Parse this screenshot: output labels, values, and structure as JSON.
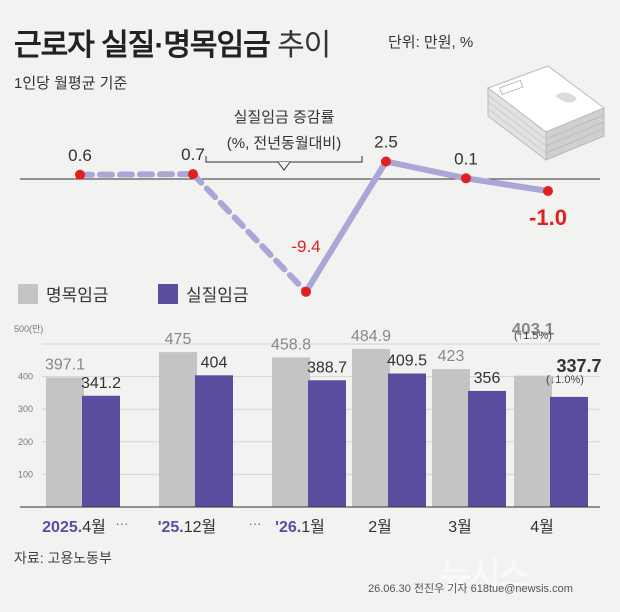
{
  "title": {
    "main": "근로자 실질·명목임금",
    "light": "추이",
    "unit": "단위: 만원, %"
  },
  "basis": "1인당 월평균 기준",
  "annotation": {
    "line1": "실질임금 증감률",
    "line2": "(%, 전년동월대비)"
  },
  "legend": {
    "nominal": "명목임금",
    "real": "실질임금"
  },
  "y_unit_label": "500(만)",
  "change_notes": {
    "nominal": "1.5%",
    "real": "1.0%"
  },
  "source": "자료: 고용노동부",
  "credit": "26.06.30 전진우 기자 618tue@newsis.com",
  "watermark": "뉴시스",
  "colors": {
    "nominal": "#c4c4c4",
    "real": "#5a4da0",
    "line": "#aaa6d6",
    "marker": "#e02020",
    "background": "#f2f2f0"
  },
  "chart_data": [
    {
      "type": "line",
      "title": "실질임금 증감률",
      "categories": [
        "2025.4월",
        "'25.12월",
        "'26.1월",
        "2월",
        "3월",
        "4월"
      ],
      "values": [
        0.6,
        0.7,
        -9.4,
        2.5,
        0.1,
        -1.0
      ],
      "labels": [
        "0.6",
        "0.7",
        "-9.4",
        "2.5",
        "0.1",
        "-1.0"
      ],
      "dashed_segments": [
        [
          0,
          1
        ],
        [
          1,
          2
        ]
      ],
      "negative_color": "#e02020"
    },
    {
      "type": "bar",
      "categories": [
        "2025.4월",
        "'25.12월",
        "'26.1월",
        "2월",
        "3월",
        "4월"
      ],
      "category_parts": [
        [
          "2025.",
          "4월"
        ],
        [
          "'25.",
          "12월"
        ],
        [
          "'26.",
          "1월"
        ],
        [
          "",
          "2월"
        ],
        [
          "",
          "3월"
        ],
        [
          "",
          "4월"
        ]
      ],
      "yticks": [
        100,
        200,
        300,
        400,
        500
      ],
      "ylim": [
        0,
        520
      ],
      "series": [
        {
          "name": "명목임금",
          "values": [
            397.1,
            475,
            458.8,
            484.9,
            423,
            403.1
          ],
          "labels": [
            "397.1",
            "475",
            "458.8",
            "484.9",
            "423",
            "403.1"
          ]
        },
        {
          "name": "실질임금",
          "values": [
            341.2,
            404,
            388.7,
            409.5,
            356,
            337.7
          ],
          "labels": [
            "341.2",
            "404",
            "388.7",
            "409.5",
            "356",
            "337.7"
          ]
        }
      ]
    }
  ]
}
